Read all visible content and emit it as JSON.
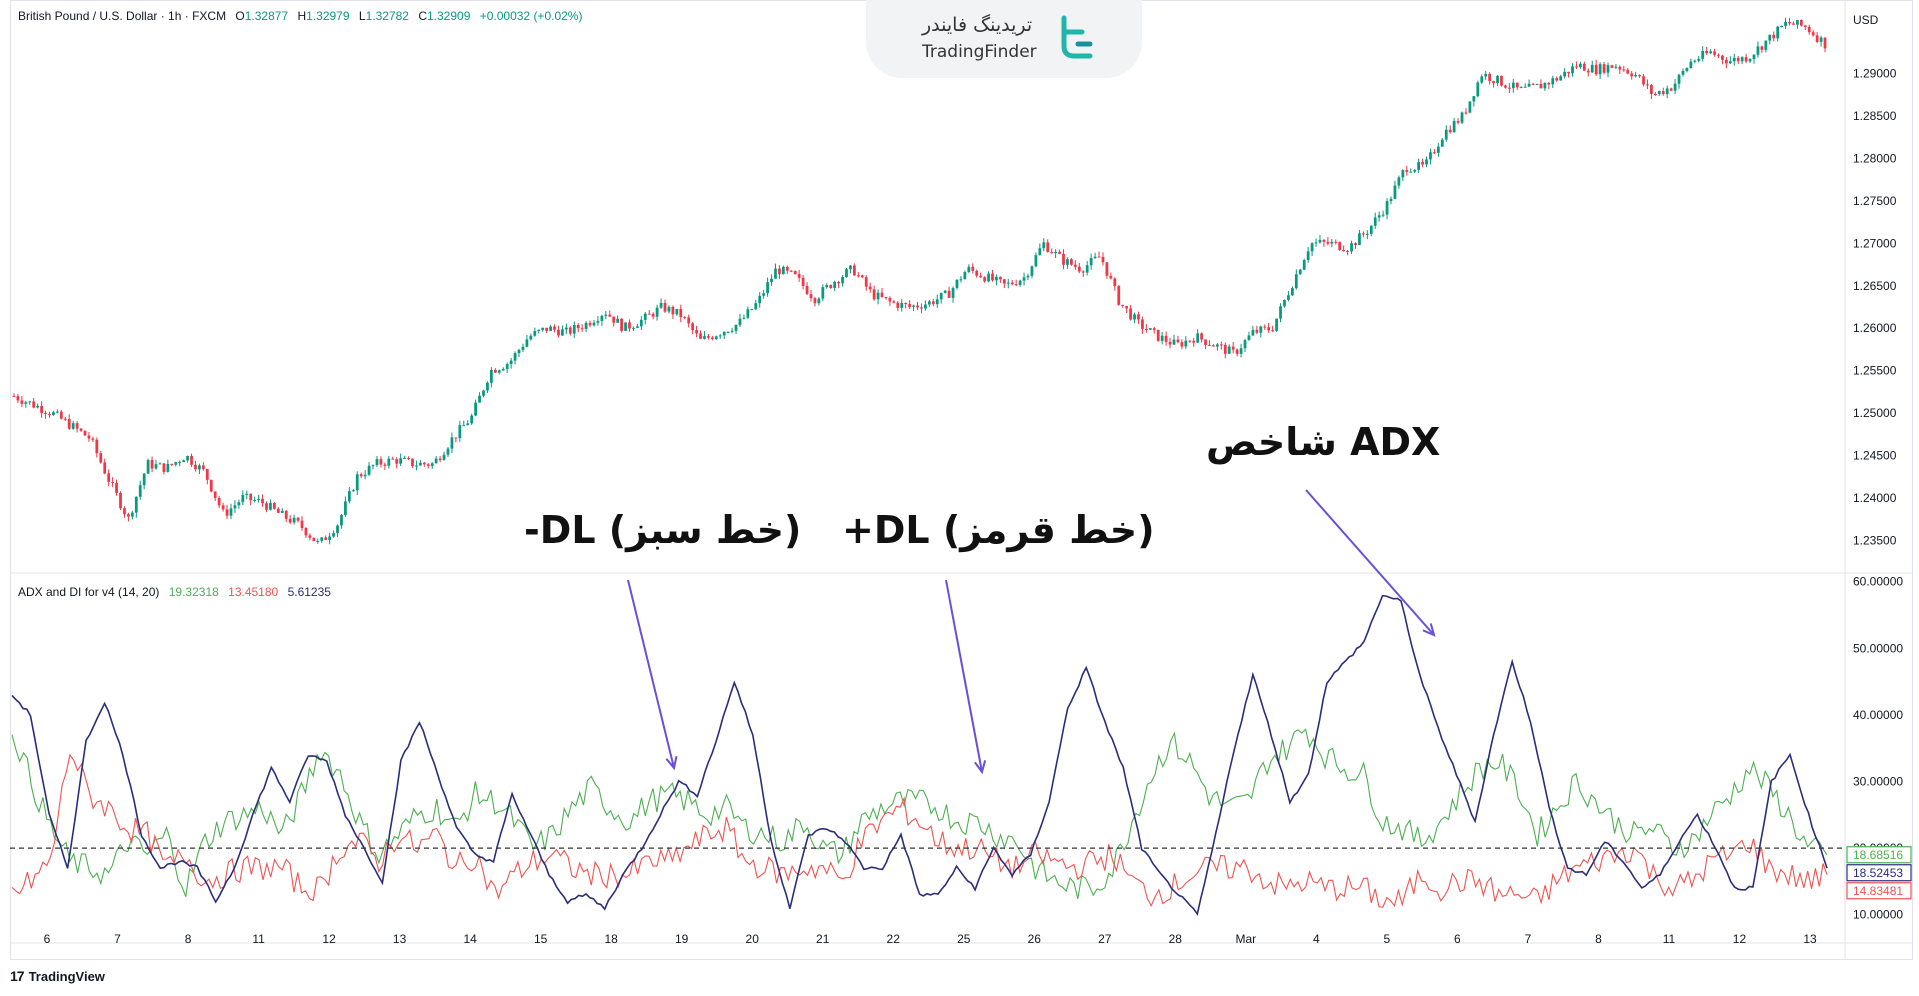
{
  "chart_data": [
    {
      "type": "candlestick",
      "legend": {
        "symbol": "British Pound / U.S. Dollar · 1h · FXCM",
        "open_label": "O",
        "open": "1.32877",
        "high_label": "H",
        "high": "1.32979",
        "low_label": "L",
        "low": "1.32782",
        "close_label": "C",
        "close": "1.32909",
        "change": "+0.00032 (+0.02%)"
      },
      "currency": "USD",
      "ylim": [
        1.2315,
        1.2975
      ],
      "y_ticks": [
        "1.29000",
        "1.28500",
        "1.28000",
        "1.27500",
        "1.27000",
        "1.26500",
        "1.26000",
        "1.25500",
        "1.25000",
        "1.24500",
        "1.24000",
        "1.23500"
      ],
      "price_path": [
        [
          0,
          1.252
        ],
        [
          2,
          1.25
        ],
        [
          4,
          1.247
        ],
        [
          5,
          1.242
        ],
        [
          6,
          1.2375
        ],
        [
          7,
          1.244
        ],
        [
          8,
          1.2435
        ],
        [
          9,
          1.245
        ],
        [
          10,
          1.243
        ],
        [
          11,
          1.238
        ],
        [
          12,
          1.24
        ],
        [
          13,
          1.2395
        ],
        [
          14,
          1.238
        ],
        [
          15,
          1.2368
        ],
        [
          16,
          1.2345
        ],
        [
          17,
          1.237
        ],
        [
          18,
          1.2425
        ],
        [
          19,
          1.244
        ],
        [
          20,
          1.2445
        ],
        [
          21,
          1.244
        ],
        [
          22,
          1.244
        ],
        [
          23,
          1.247
        ],
        [
          24,
          1.2495
        ],
        [
          25,
          1.255
        ],
        [
          26,
          1.256
        ],
        [
          27,
          1.259
        ],
        [
          28,
          1.26
        ],
        [
          29,
          1.2595
        ],
        [
          30,
          1.2605
        ],
        [
          31,
          1.262
        ],
        [
          32,
          1.26
        ],
        [
          33,
          1.261
        ],
        [
          34,
          1.2625
        ],
        [
          35,
          1.2615
        ],
        [
          36,
          1.2585
        ],
        [
          37,
          1.2595
        ],
        [
          38,
          1.2605
        ],
        [
          39,
          1.263
        ],
        [
          40,
          1.267
        ],
        [
          41,
          1.266
        ],
        [
          42,
          1.2635
        ],
        [
          43,
          1.2655
        ],
        [
          44,
          1.267
        ],
        [
          45,
          1.264
        ],
        [
          46,
          1.263
        ],
        [
          47,
          1.2625
        ],
        [
          48,
          1.263
        ],
        [
          49,
          1.264
        ],
        [
          50,
          1.267
        ],
        [
          51,
          1.266
        ],
        [
          52,
          1.265
        ],
        [
          53,
          1.266
        ],
        [
          54,
          1.27
        ],
        [
          55,
          1.268
        ],
        [
          56,
          1.267
        ],
        [
          57,
          1.2685
        ],
        [
          58,
          1.263
        ],
        [
          59,
          1.2605
        ],
        [
          60,
          1.259
        ],
        [
          61,
          1.258
        ],
        [
          62,
          1.259
        ],
        [
          63,
          1.258
        ],
        [
          64,
          1.257
        ],
        [
          65,
          1.2595
        ],
        [
          66,
          1.26
        ],
        [
          67,
          1.265
        ],
        [
          68,
          1.27
        ],
        [
          69,
          1.27
        ],
        [
          70,
          1.2695
        ],
        [
          71,
          1.2715
        ],
        [
          72,
          1.2745
        ],
        [
          73,
          1.279
        ],
        [
          74,
          1.279
        ],
        [
          75,
          1.283
        ],
        [
          76,
          1.285
        ],
        [
          77,
          1.29
        ],
        [
          78,
          1.289
        ],
        [
          79,
          1.288
        ],
        [
          80,
          1.2885
        ],
        [
          81,
          1.2895
        ],
        [
          82,
          1.291
        ],
        [
          83,
          1.2905
        ],
        [
          84,
          1.291
        ],
        [
          85,
          1.29
        ],
        [
          86,
          1.2875
        ],
        [
          87,
          1.2885
        ],
        [
          88,
          1.2915
        ],
        [
          89,
          1.2925
        ],
        [
          90,
          1.2915
        ],
        [
          91,
          1.292
        ],
        [
          92,
          1.294
        ],
        [
          93,
          1.296
        ],
        [
          94,
          1.2955
        ],
        [
          95,
          1.2935
        ]
      ]
    },
    {
      "type": "line",
      "legend": {
        "name": "ADX and DI for v4 (14, 20)",
        "v1": "19.32318",
        "v2": "13.45180",
        "v3": "5.61235"
      },
      "ylim": [
        5,
        61
      ],
      "y_ticks": [
        "60.00000",
        "50.00000",
        "40.00000",
        "30.00000",
        "20.00000",
        "10.00000"
      ],
      "threshold": 20,
      "series": [
        {
          "color": "#4caf50",
          "last_label": "18.68516",
          "values": [
            38,
            30,
            23,
            18,
            17,
            16,
            21,
            19,
            22,
            14,
            21,
            24,
            25,
            26,
            22,
            28,
            35,
            31,
            24,
            19,
            22,
            25,
            26,
            23,
            28,
            27,
            24,
            20,
            22,
            26,
            29,
            26,
            24,
            27,
            28,
            27,
            25,
            26,
            23,
            22,
            21,
            24,
            20,
            19,
            24,
            26,
            27,
            27,
            26,
            24,
            24,
            22,
            21,
            17,
            15,
            14,
            14,
            17,
            24,
            31,
            36,
            33,
            28,
            26,
            27,
            33,
            35,
            38,
            34,
            32,
            31,
            24,
            23,
            21,
            24,
            28,
            32,
            33,
            29,
            22,
            26,
            30,
            27,
            24,
            22,
            23,
            20,
            21,
            25,
            28,
            32,
            29,
            25,
            20,
            19
          ]
        },
        {
          "color": "#ef5350",
          "last_label": "14.83481",
          "values": [
            13,
            15,
            18,
            35,
            28,
            26,
            23,
            22,
            17,
            19,
            15,
            16,
            17,
            17,
            17,
            14,
            14,
            20,
            21,
            18,
            22,
            20,
            22,
            17,
            19,
            13,
            16,
            18,
            19,
            17,
            16,
            16,
            16,
            18,
            18,
            20,
            22,
            23,
            18,
            17,
            16,
            17,
            17,
            15,
            21,
            24,
            26,
            24,
            21,
            20,
            20,
            18,
            17,
            19,
            18,
            17,
            18,
            19,
            15,
            13,
            14,
            16,
            17,
            17,
            17,
            15,
            14,
            15,
            14,
            14,
            14,
            12,
            12,
            16,
            14,
            15,
            15,
            13,
            13,
            12,
            15,
            17,
            18,
            19,
            20,
            16,
            14,
            15,
            18,
            19,
            21,
            17,
            16,
            15,
            16
          ]
        },
        {
          "color": "#2a2e7a",
          "last_label": "18.52453",
          "values": [
            43,
            40,
            25,
            17,
            36,
            42,
            34,
            22,
            17,
            18,
            17,
            12,
            17,
            25,
            32,
            27,
            34,
            33,
            25,
            20,
            15,
            33,
            39,
            31,
            23,
            19,
            18,
            28,
            22,
            16,
            12,
            13,
            11,
            16,
            20,
            25,
            30,
            28,
            36,
            45,
            37,
            21,
            11,
            22,
            23,
            21,
            17,
            17,
            22,
            13,
            13,
            17,
            14,
            20,
            16,
            19,
            27,
            41,
            47,
            39,
            32,
            20,
            16,
            13,
            10,
            22,
            35,
            46,
            37,
            27,
            31,
            45,
            48,
            51,
            58,
            57,
            46,
            38,
            31,
            24,
            37,
            48,
            39,
            26,
            17,
            16,
            21,
            18,
            14,
            16,
            21,
            25,
            20,
            14,
            14,
            30,
            34,
            25,
            17
          ]
        }
      ],
      "x_labels": [
        "6",
        "7",
        "8",
        "11",
        "12",
        "13",
        "14",
        "15",
        "18",
        "19",
        "20",
        "21",
        "22",
        "25",
        "26",
        "27",
        "28",
        "Mar",
        "4",
        "5",
        "6",
        "7",
        "8",
        "11",
        "12",
        "13"
      ]
    }
  ],
  "logo": {
    "text_fa": "تریدینگ فایندر",
    "text_en": "TradingFinder"
  },
  "annotations": {
    "adx": "شاخص ADX",
    "plus_dl": "+DL (خط قرمز)",
    "minus_dl": "-DL (خط سبز)"
  },
  "brand": {
    "mark": "17",
    "text": "TradingView"
  },
  "colors": {
    "up": "#089981",
    "down": "#f23645",
    "plus": "#ef5350",
    "minus": "#4caf50",
    "adx": "#2a2e7a",
    "arrow": "#6b4fd8"
  }
}
